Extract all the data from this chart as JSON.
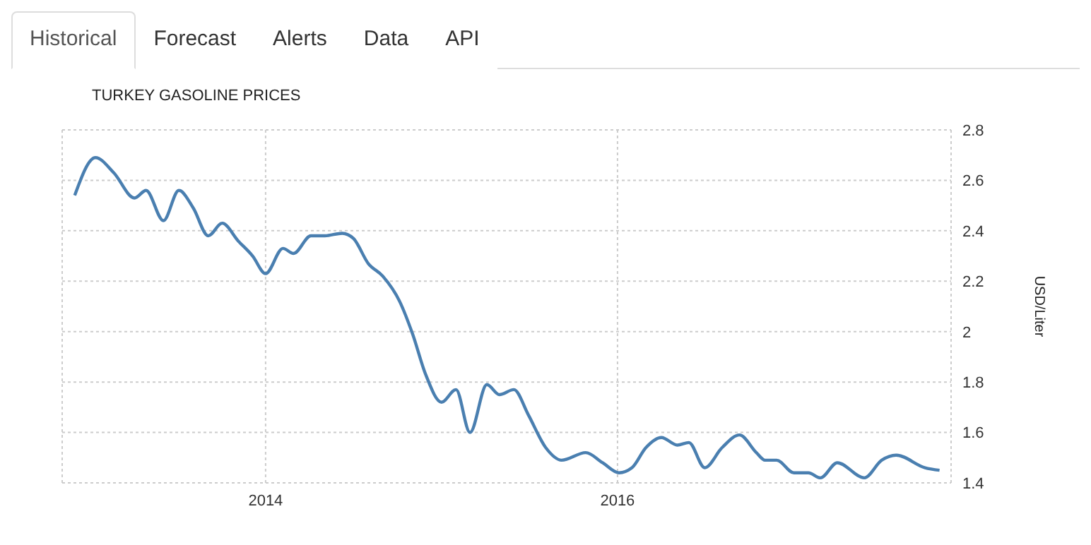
{
  "chart_data": {
    "type": "line",
    "title": "TURKEY GASOLINE PRICES",
    "ylabel": "USD/Liter",
    "annotations": [
      "Historical",
      "Forecast",
      "Alerts",
      "Data",
      "API"
    ],
    "x": [
      "2012-12-01",
      "2013-01-13",
      "2013-02-20",
      "2013-04-04",
      "2013-04-28",
      "2013-06-03",
      "2013-07-05",
      "2013-08-04",
      "2013-09-04",
      "2013-10-03",
      "2013-11-05",
      "2013-12-05",
      "2014-01-01",
      "2014-02-06",
      "2014-02-28",
      "2014-04-05",
      "2014-05-04",
      "2014-06-09",
      "2014-07-02",
      "2014-08-02",
      "2014-09-01",
      "2014-10-06",
      "2014-11-02",
      "2014-11-29",
      "2015-01-01",
      "2015-01-31",
      "2015-03-01",
      "2015-04-05",
      "2015-05-01",
      "2015-05-31",
      "2015-06-30",
      "2015-08-05",
      "2015-09-07",
      "2015-10-27",
      "2015-12-01",
      "2016-01-04",
      "2016-01-31",
      "2016-02-29",
      "2016-04-01",
      "2016-05-04",
      "2016-05-28",
      "2016-06-30",
      "2016-08-05",
      "2016-09-10",
      "2016-10-15",
      "2016-11-02",
      "2016-11-26",
      "2017-01-01",
      "2017-01-31",
      "2017-02-25",
      "2017-04-01",
      "2017-05-27",
      "2017-07-02",
      "2017-08-01",
      "2017-09-30",
      "2017-10-30"
    ],
    "series": [
      {
        "color": "#4a7fb0",
        "values": [
          2.54,
          2.69,
          2.63,
          2.53,
          2.56,
          2.44,
          2.56,
          2.49,
          2.38,
          2.43,
          2.36,
          2.3,
          2.23,
          2.33,
          2.31,
          2.38,
          2.38,
          2.39,
          2.37,
          2.27,
          2.22,
          2.12,
          1.99,
          1.83,
          1.72,
          1.77,
          1.6,
          1.79,
          1.75,
          1.77,
          1.67,
          1.54,
          1.49,
          1.52,
          1.48,
          1.44,
          1.46,
          1.54,
          1.58,
          1.55,
          1.56,
          1.46,
          1.54,
          1.59,
          1.52,
          1.49,
          1.49,
          1.44,
          1.44,
          1.42,
          1.48,
          1.42,
          1.49,
          1.51,
          1.46,
          1.45
        ]
      }
    ],
    "xlim": [
      "2012-11-05",
      "2017-11-23"
    ],
    "xticks": [
      {
        "value": "2014-01-01",
        "label": "2014"
      },
      {
        "value": "2016-01-01",
        "label": "2016"
      }
    ],
    "ylim": [
      1.4,
      2.8
    ],
    "yticks": [
      1.4,
      1.6,
      1.8,
      2,
      2.2,
      2.4,
      2.6,
      2.8
    ],
    "grid": true,
    "legend": false,
    "marker": "none",
    "line_style": "solid"
  }
}
